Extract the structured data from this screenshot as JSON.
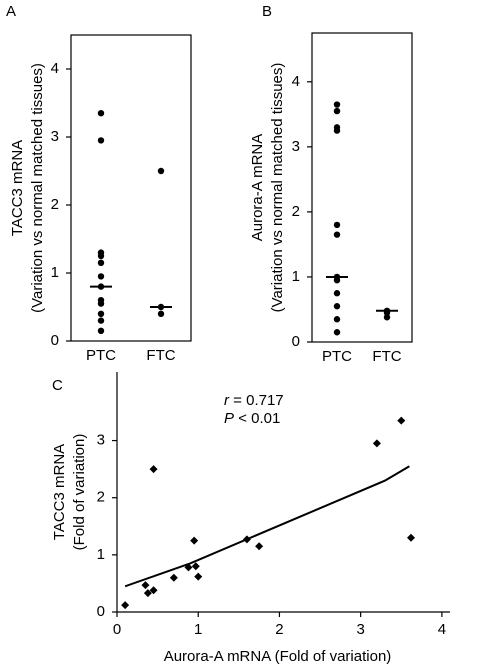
{
  "chart_data": [
    {
      "type": "strip",
      "panel": "A",
      "ylabel": [
        "TACC3 mRNA",
        "(Variation vs normal matched tissues)"
      ],
      "categories": [
        "PTC",
        "FTC"
      ],
      "values": [
        [
          3.35,
          2.95,
          1.3,
          1.25,
          1.15,
          0.95,
          0.8,
          0.6,
          0.55,
          0.4,
          0.3,
          0.15
        ],
        [
          2.5,
          0.5,
          0.4
        ]
      ],
      "medians": [
        0.8,
        0.5
      ],
      "color": "#000000",
      "ylim": [
        0,
        4.5
      ],
      "yticks": [
        0,
        1,
        2,
        3,
        4
      ]
    },
    {
      "type": "strip",
      "panel": "B",
      "ylabel": [
        "Aurora-A mRNA",
        "(Variation vs normal matched tissues)"
      ],
      "categories": [
        "PTC",
        "FTC"
      ],
      "values": [
        [
          3.65,
          3.55,
          3.3,
          3.25,
          1.8,
          1.65,
          1.0,
          0.95,
          0.75,
          0.55,
          0.35,
          0.15
        ],
        [
          0.48,
          0.45,
          0.38
        ]
      ],
      "medians": [
        1.0,
        0.48
      ],
      "color": "#000000",
      "ylim": [
        0,
        4.75
      ],
      "yticks": [
        0,
        1,
        2,
        3,
        4
      ]
    },
    {
      "type": "scatter",
      "panel": "C",
      "ylabel": [
        "TACC3 mRNA",
        "(Fold of variation)"
      ],
      "xlabel": "Aurora-A mRNA (Fold of variation)",
      "annotations": [
        {
          "symbol": "r",
          "text": "= 0.717"
        },
        {
          "symbol": "P",
          "text": "< 0.01"
        }
      ],
      "x": [
        0.1,
        0.35,
        0.38,
        0.45,
        0.45,
        0.7,
        0.88,
        0.95,
        0.97,
        1.0,
        1.6,
        1.75,
        3.2,
        3.5,
        3.62
      ],
      "y": [
        0.12,
        0.47,
        0.33,
        0.38,
        2.5,
        0.6,
        0.78,
        1.25,
        0.8,
        0.62,
        1.27,
        1.15,
        2.95,
        3.35,
        1.3
      ],
      "fit_line": {
        "x": [
          0.1,
          0.9,
          3.3,
          3.6
        ],
        "y": [
          0.45,
          0.85,
          2.3,
          2.55
        ]
      },
      "color": "#000000",
      "xlim": [
        0,
        4.1
      ],
      "xticks": [
        0,
        1,
        2,
        3,
        4
      ],
      "ylim": [
        0,
        4.2
      ],
      "yticks": [
        0,
        1,
        2,
        3
      ]
    }
  ]
}
